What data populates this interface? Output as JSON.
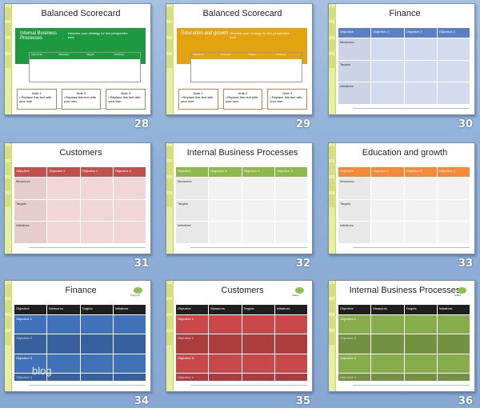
{
  "slides": [
    {
      "num": "28",
      "title": "Balanced Scorecard",
      "head_label": "Internal Business Processes",
      "head_desc": "Describe your strategy for this perspective here",
      "cols": [
        "Objectives",
        "Measures",
        "Targets",
        "Initiatives"
      ],
      "notes": [
        "Note 1",
        "Note 2",
        "Note 3"
      ],
      "note_body": "• Replace this text with your own",
      "color": "#1d9a3f"
    },
    {
      "num": "29",
      "title": "Balanced Scorecard",
      "head_label": "Education and growth",
      "head_desc": "Describe your strategy for this perspective here",
      "cols": [
        "Objectives",
        "Measures",
        "Targets",
        "Initiatives"
      ],
      "notes": [
        "Note 1",
        "Note 2",
        "Note 3"
      ],
      "note_body": "• Replace this text with your own",
      "color": "#e2a30e"
    },
    {
      "num": "30",
      "title": "Finance",
      "cols": [
        "Objective",
        "Objective 1",
        "Objective 2",
        "Objective 3"
      ],
      "rows": [
        "Measures",
        "Targets",
        "Initiatives"
      ],
      "color": "#5b7fc7",
      "fill": "#d3dcef"
    },
    {
      "num": "31",
      "title": "Customers",
      "cols": [
        "Objective",
        "Objective 1",
        "Objective 2",
        "Objective 3"
      ],
      "rows": [
        "Measures",
        "Targets",
        "Initiatives"
      ],
      "color": "#c0504d",
      "fill": "#f0d6d6"
    },
    {
      "num": "32",
      "title": "Internal Business Processes",
      "cols": [
        "Objective",
        "Objective 1",
        "Objective 2",
        "Objective 3"
      ],
      "rows": [
        "Measures",
        "Targets",
        "Initiatives"
      ],
      "color": "#8db84a",
      "fill": "#f2f2f2"
    },
    {
      "num": "33",
      "title": "Education and growth",
      "cols": [
        "Objective",
        "Objective 1",
        "Objective 2",
        "Objective 3"
      ],
      "rows": [
        "Measures",
        "Targets",
        "Initiatives"
      ],
      "color": "#f38a3a",
      "fill": "#f2f2f2"
    },
    {
      "num": "34",
      "title": "Finance",
      "dot": "Progress",
      "cols": [
        "Objective",
        "Measures",
        "Targets",
        "Initiatives"
      ],
      "rows": [
        "Objective 1",
        "Objective 2",
        "Objective 3",
        "Objective 4"
      ],
      "color": "#1f1f1f",
      "fill": "#3f72b8",
      "watermark": "blog"
    },
    {
      "num": "35",
      "title": "Customers",
      "dot": "Status",
      "cols": [
        "Objective",
        "Measures",
        "Targets",
        "Initiatives"
      ],
      "rows": [
        "Objective 1",
        "Objective 2",
        "Objective 3",
        "Objective 4"
      ],
      "color": "#1f1f1f",
      "fill": "#c9484a"
    },
    {
      "num": "36",
      "title": "Internal Business Processes",
      "dot": "Status",
      "cols": [
        "Objective",
        "Measures",
        "Targets",
        "Initiatives"
      ],
      "rows": [
        "Objective 1",
        "Objective 2",
        "Objective 3",
        "Objective 4"
      ],
      "color": "#1f1f1f",
      "fill": "#86ac4c"
    }
  ]
}
